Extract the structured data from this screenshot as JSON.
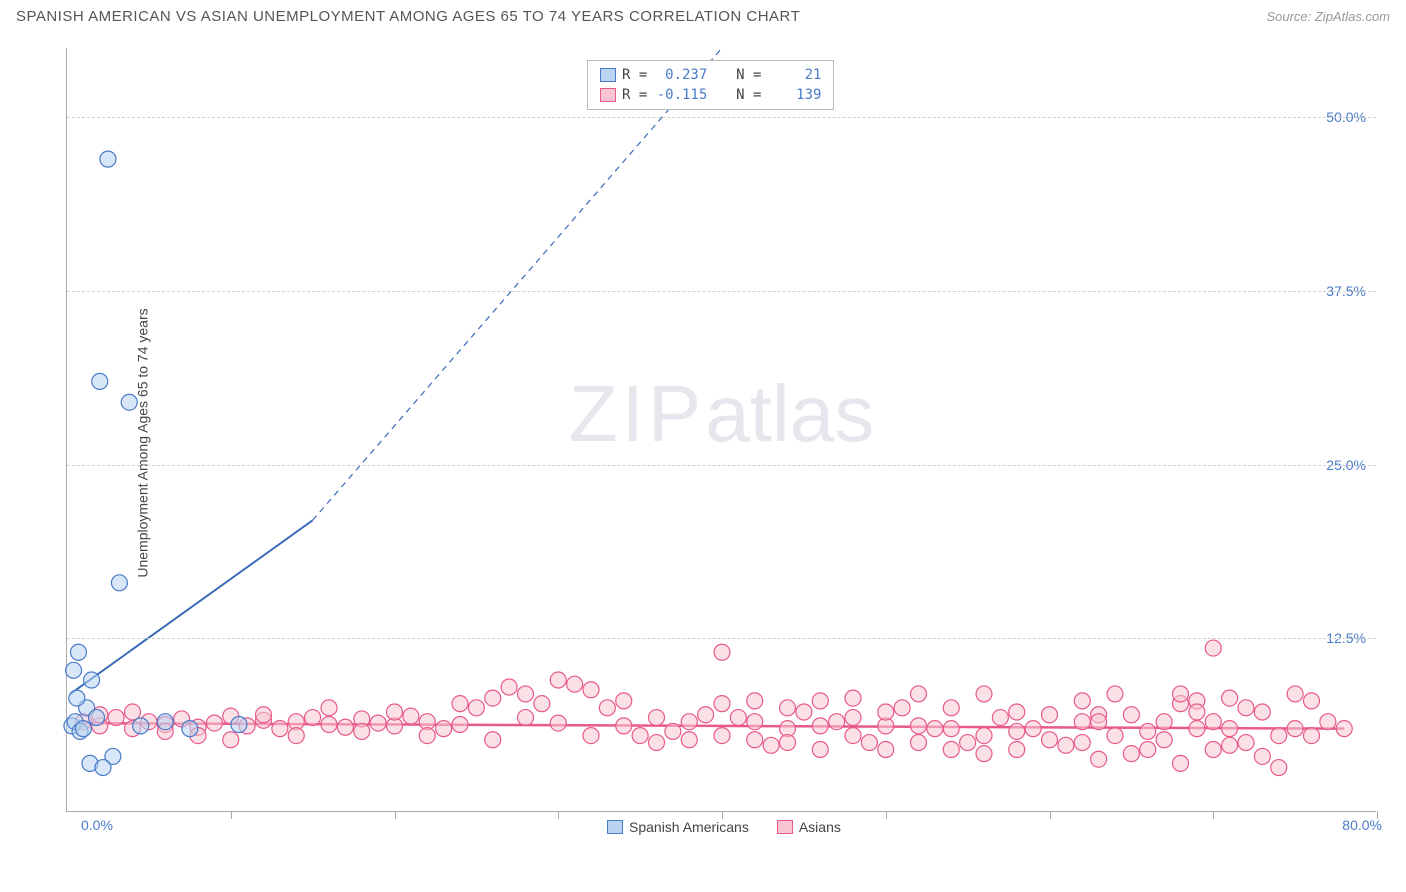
{
  "title": "SPANISH AMERICAN VS ASIAN UNEMPLOYMENT AMONG AGES 65 TO 74 YEARS CORRELATION CHART",
  "source": "Source: ZipAtlas.com",
  "y_axis_label": "Unemployment Among Ages 65 to 74 years",
  "watermark_a": "ZIP",
  "watermark_b": "atlas",
  "chart": {
    "type": "scatter",
    "xlim": [
      0,
      80
    ],
    "ylim": [
      0,
      55
    ],
    "x_ticks": [
      10,
      20,
      30,
      40,
      50,
      60,
      70,
      80
    ],
    "y_grid": [
      12.5,
      25.0,
      37.5,
      50.0
    ],
    "y_tick_labels": [
      "12.5%",
      "25.0%",
      "37.5%",
      "50.0%"
    ],
    "x_origin_label": "0.0%",
    "x_max_label": "80.0%",
    "background_color": "#ffffff",
    "grid_color": "#d0d0d0",
    "axis_color": "#aaaaaa",
    "series": [
      {
        "name": "Spanish Americans",
        "color_fill": "#b8d4f0",
        "color_stroke": "#4a7bc8",
        "marker_radius": 8,
        "fill_opacity": 0.55,
        "R": "0.237",
        "N": "21",
        "trend": {
          "x1": 0.2,
          "y1": 8.5,
          "x2": 15,
          "y2": 21,
          "dash_to_x": 40,
          "dash_to_y": 55,
          "color": "#3a6bb8",
          "width": 2
        },
        "points": [
          [
            0.3,
            6.2
          ],
          [
            0.5,
            6.5
          ],
          [
            0.8,
            5.8
          ],
          [
            1.0,
            6.0
          ],
          [
            1.2,
            7.5
          ],
          [
            0.6,
            8.2
          ],
          [
            1.5,
            9.5
          ],
          [
            0.4,
            10.2
          ],
          [
            0.7,
            11.5
          ],
          [
            2.5,
            47.0
          ],
          [
            3.2,
            16.5
          ],
          [
            2.0,
            31.0
          ],
          [
            3.8,
            29.5
          ],
          [
            1.8,
            6.8
          ],
          [
            4.5,
            6.2
          ],
          [
            6.0,
            6.5
          ],
          [
            7.5,
            6.0
          ],
          [
            2.8,
            4.0
          ],
          [
            1.4,
            3.5
          ],
          [
            2.2,
            3.2
          ],
          [
            10.5,
            6.3
          ]
        ]
      },
      {
        "name": "Asians",
        "color_fill": "#f7c6d2",
        "color_stroke": "#e85a8a",
        "marker_radius": 8,
        "fill_opacity": 0.55,
        "R": "-0.115",
        "N": "139",
        "trend": {
          "x1": 0.5,
          "y1": 6.4,
          "x2": 78,
          "y2": 6.0,
          "color": "#e85a8a",
          "width": 2.5
        },
        "points": [
          [
            1,
            6.5
          ],
          [
            2,
            6.2
          ],
          [
            3,
            6.8
          ],
          [
            4,
            6.0
          ],
          [
            5,
            6.5
          ],
          [
            6,
            6.3
          ],
          [
            7,
            6.7
          ],
          [
            8,
            6.1
          ],
          [
            9,
            6.4
          ],
          [
            10,
            6.9
          ],
          [
            11,
            6.2
          ],
          [
            12,
            6.6
          ],
          [
            13,
            6.0
          ],
          [
            14,
            6.5
          ],
          [
            15,
            6.8
          ],
          [
            16,
            6.3
          ],
          [
            17,
            6.1
          ],
          [
            18,
            6.7
          ],
          [
            19,
            6.4
          ],
          [
            20,
            6.2
          ],
          [
            21,
            6.9
          ],
          [
            22,
            6.5
          ],
          [
            23,
            6.0
          ],
          [
            24,
            6.3
          ],
          [
            25,
            7.5
          ],
          [
            26,
            8.2
          ],
          [
            27,
            9.0
          ],
          [
            28,
            8.5
          ],
          [
            29,
            7.8
          ],
          [
            30,
            6.4
          ],
          [
            31,
            9.2
          ],
          [
            32,
            8.8
          ],
          [
            33,
            7.5
          ],
          [
            34,
            6.2
          ],
          [
            35,
            5.5
          ],
          [
            36,
            5.0
          ],
          [
            37,
            5.8
          ],
          [
            38,
            6.5
          ],
          [
            39,
            7.0
          ],
          [
            40,
            11.5
          ],
          [
            41,
            6.8
          ],
          [
            42,
            5.2
          ],
          [
            43,
            4.8
          ],
          [
            44,
            6.0
          ],
          [
            45,
            7.2
          ],
          [
            46,
            8.0
          ],
          [
            47,
            6.5
          ],
          [
            48,
            5.5
          ],
          [
            49,
            5.0
          ],
          [
            50,
            6.2
          ],
          [
            51,
            7.5
          ],
          [
            52,
            8.5
          ],
          [
            53,
            6.0
          ],
          [
            54,
            4.5
          ],
          [
            55,
            5.0
          ],
          [
            56,
            5.5
          ],
          [
            57,
            6.8
          ],
          [
            58,
            7.2
          ],
          [
            59,
            6.0
          ],
          [
            60,
            5.2
          ],
          [
            61,
            4.8
          ],
          [
            62,
            6.5
          ],
          [
            63,
            7.0
          ],
          [
            64,
            5.5
          ],
          [
            65,
            4.2
          ],
          [
            66,
            5.8
          ],
          [
            67,
            6.5
          ],
          [
            68,
            7.8
          ],
          [
            69,
            6.0
          ],
          [
            70,
            11.8
          ],
          [
            71,
            8.2
          ],
          [
            72,
            7.5
          ],
          [
            73,
            4.0
          ],
          [
            74,
            5.5
          ],
          [
            75,
            6.0
          ],
          [
            76,
            8.0
          ],
          [
            77,
            6.5
          ],
          [
            78,
            6.0
          ],
          [
            2,
            7.0
          ],
          [
            4,
            7.2
          ],
          [
            6,
            5.8
          ],
          [
            8,
            5.5
          ],
          [
            10,
            5.2
          ],
          [
            12,
            7.0
          ],
          [
            14,
            5.5
          ],
          [
            16,
            7.5
          ],
          [
            18,
            5.8
          ],
          [
            20,
            7.2
          ],
          [
            22,
            5.5
          ],
          [
            24,
            7.8
          ],
          [
            26,
            5.2
          ],
          [
            28,
            6.8
          ],
          [
            30,
            9.5
          ],
          [
            32,
            5.5
          ],
          [
            34,
            8.0
          ],
          [
            36,
            6.8
          ],
          [
            38,
            5.2
          ],
          [
            40,
            7.8
          ],
          [
            42,
            6.5
          ],
          [
            44,
            5.0
          ],
          [
            46,
            6.2
          ],
          [
            48,
            8.2
          ],
          [
            50,
            4.5
          ],
          [
            52,
            6.2
          ],
          [
            54,
            7.5
          ],
          [
            56,
            4.2
          ],
          [
            58,
            5.8
          ],
          [
            60,
            7.0
          ],
          [
            62,
            5.0
          ],
          [
            63,
            3.8
          ],
          [
            64,
            8.5
          ],
          [
            65,
            7.0
          ],
          [
            66,
            4.5
          ],
          [
            67,
            5.2
          ],
          [
            68,
            3.5
          ],
          [
            69,
            8.0
          ],
          [
            70,
            4.5
          ],
          [
            71,
            6.0
          ],
          [
            72,
            5.0
          ],
          [
            73,
            7.2
          ],
          [
            74,
            3.2
          ],
          [
            75,
            8.5
          ],
          [
            76,
            5.5
          ],
          [
            68,
            8.5
          ],
          [
            69,
            7.2
          ],
          [
            70,
            6.5
          ],
          [
            71,
            4.8
          ],
          [
            62,
            8.0
          ],
          [
            63,
            6.5
          ],
          [
            48,
            6.8
          ],
          [
            50,
            7.2
          ],
          [
            52,
            5.0
          ],
          [
            54,
            6.0
          ],
          [
            56,
            8.5
          ],
          [
            58,
            4.5
          ],
          [
            44,
            7.5
          ],
          [
            46,
            4.5
          ],
          [
            42,
            8.0
          ],
          [
            40,
            5.5
          ]
        ]
      }
    ]
  },
  "stats_labels": {
    "R": "R =",
    "N": "N ="
  },
  "legend": {
    "a": "Spanish Americans",
    "b": "Asians"
  }
}
